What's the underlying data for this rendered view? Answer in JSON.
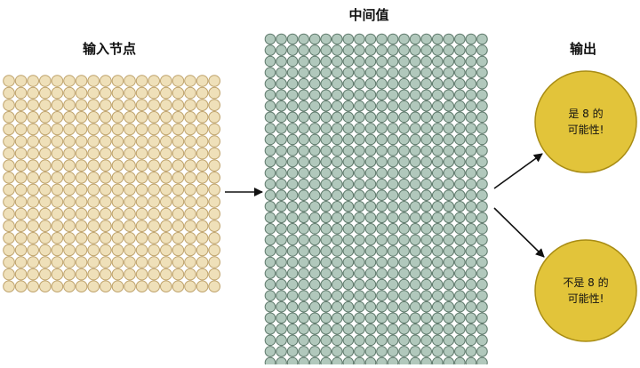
{
  "titles": {
    "input": "输入节点",
    "middle": "中间值",
    "output": "输出"
  },
  "outputs": [
    {
      "line1": "是 8 的",
      "line2": "可能性!"
    },
    {
      "line1": "不是 8 的",
      "line2": "可能性!"
    }
  ],
  "colors": {
    "input_fill": "#efe0b9",
    "input_stroke": "#bfa36c",
    "middle_fill": "#b1c8bc",
    "middle_stroke": "#5f7a6c",
    "output_fill": "#e2c43a",
    "output_stroke": "#a88c14",
    "arrow": "#111111"
  }
}
